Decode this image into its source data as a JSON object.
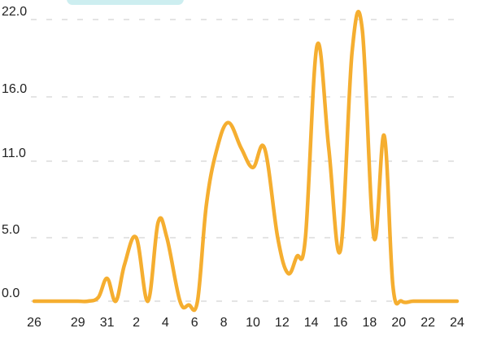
{
  "chart_data": {
    "type": "line",
    "title": "",
    "xlabel": "",
    "ylabel": "",
    "ylim": [
      0,
      22
    ],
    "y_ticks": [
      "0.0",
      "5.0",
      "11.0",
      "16.0",
      "22.0"
    ],
    "y_tick_values": [
      0,
      5,
      11,
      16,
      22
    ],
    "x_tick_labels": [
      "26",
      "29",
      "31",
      "2",
      "4",
      "6",
      "8",
      "10",
      "12",
      "14",
      "16",
      "18",
      "20",
      "22",
      "24"
    ],
    "x_tick_positions": [
      0,
      3,
      5,
      7,
      9,
      11,
      13,
      15,
      17,
      19,
      21,
      23,
      25,
      27,
      29
    ],
    "grid": true,
    "line_color": "#f5ae30",
    "x": [
      0,
      1.2,
      2.4,
      3,
      3.7,
      4.4,
      5,
      5.6,
      6.2,
      7,
      7.8,
      8.5,
      9.1,
      10,
      10.6,
      11.2,
      11.8,
      12.5,
      13.3,
      14.2,
      15,
      15.8,
      16.7,
      17.4,
      18,
      18.6,
      19.4,
      20.2,
      21,
      21.8,
      22.5,
      23.3,
      24,
      24.6,
      25.2,
      26,
      26.8,
      27.6,
      28.4,
      29
    ],
    "series": [
      {
        "values": [
          0,
          0,
          0,
          0,
          0,
          0.3,
          1.8,
          0,
          2.9,
          5,
          0,
          6.2,
          5,
          0,
          -0.3,
          0,
          7.5,
          11.8,
          14,
          12,
          10.5,
          12,
          5,
          2.2,
          3.5,
          5,
          20,
          12,
          4,
          19.5,
          21.2,
          5,
          13,
          1.2,
          0,
          0,
          0,
          0,
          0,
          0
        ]
      }
    ]
  }
}
